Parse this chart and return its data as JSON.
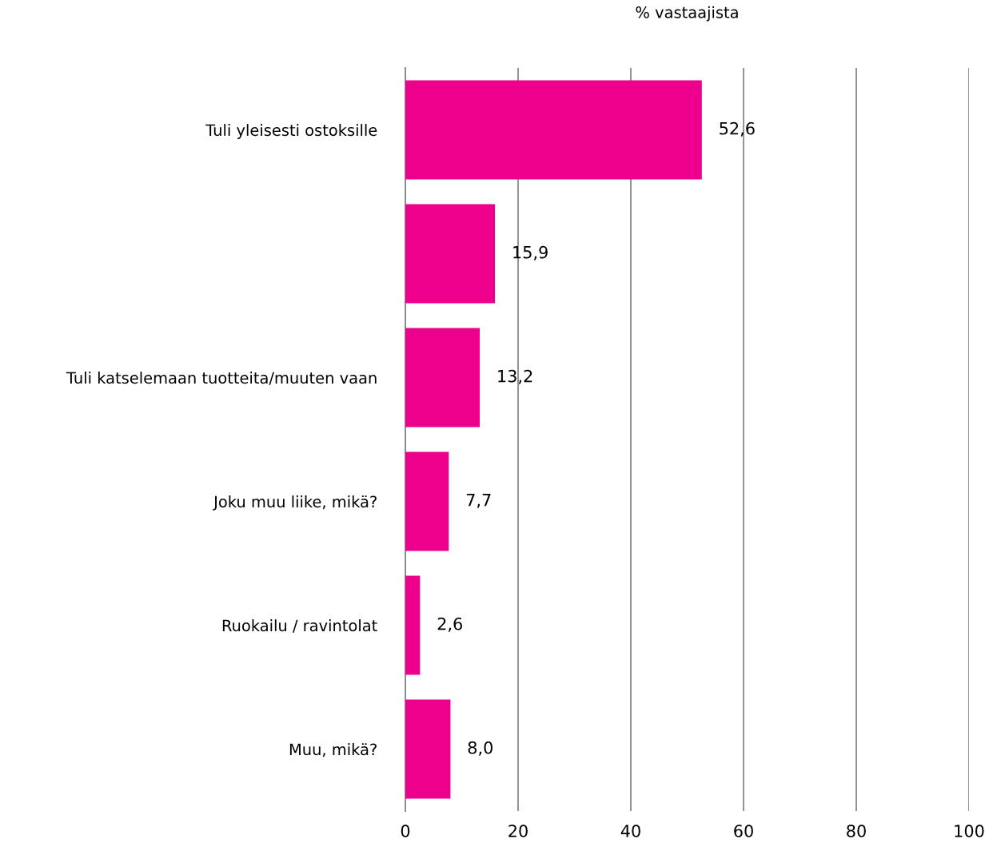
{
  "chart_data": {
    "type": "bar",
    "orientation": "horizontal",
    "xlabel": "% vastaajista",
    "categories": [
      "Tuli yleisesti ostoksille",
      null,
      "Tuli katselemaan tuotteita/muuten vaan",
      "Joku muu liike, mikä?",
      "Ruokailu / ravintolat",
      "Muu, mikä?"
    ],
    "values": [
      52.6,
      15.9,
      13.2,
      7.7,
      2.6,
      8.0
    ],
    "value_labels": [
      "52,6",
      "15,9",
      "13,2",
      "7,7",
      "2,6",
      "8,0"
    ],
    "color": "#ec008c",
    "xlim": [
      0,
      100
    ],
    "xticks": [
      0,
      20,
      40,
      60,
      80,
      100
    ],
    "grid": "x",
    "legend": false
  }
}
